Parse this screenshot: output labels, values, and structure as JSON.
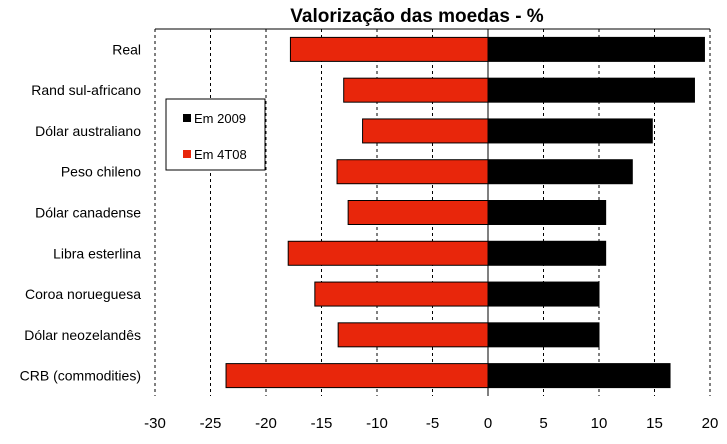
{
  "chart_data": {
    "type": "bar",
    "orientation": "horizontal",
    "title": "Valorização das moedas - %",
    "categories": [
      "Real",
      "Rand sul-africano",
      "Dólar australiano",
      "Peso chileno",
      "Dólar canadense",
      "Libra esterlina",
      "Coroa norueguesa",
      "Dólar neozelandês",
      "CRB (commodities)"
    ],
    "series": [
      {
        "name": "Em 2009",
        "color": "#000000",
        "values": [
          19.5,
          18.6,
          14.8,
          13.0,
          10.6,
          10.6,
          10.0,
          10.0,
          16.4
        ]
      },
      {
        "name": "Em 4T08",
        "color": "#e8260b",
        "values": [
          -17.8,
          -13.0,
          -11.3,
          -13.6,
          -12.6,
          -18.0,
          -15.6,
          -13.5,
          -23.6
        ]
      }
    ],
    "xlim": [
      -30,
      20
    ],
    "xticks": [
      "-30",
      "-25",
      "-20",
      "-15",
      "-10",
      "-5",
      "0",
      "5",
      "10",
      "15",
      "20"
    ],
    "grid": "vertical dashed",
    "legend_position": "top-left"
  }
}
